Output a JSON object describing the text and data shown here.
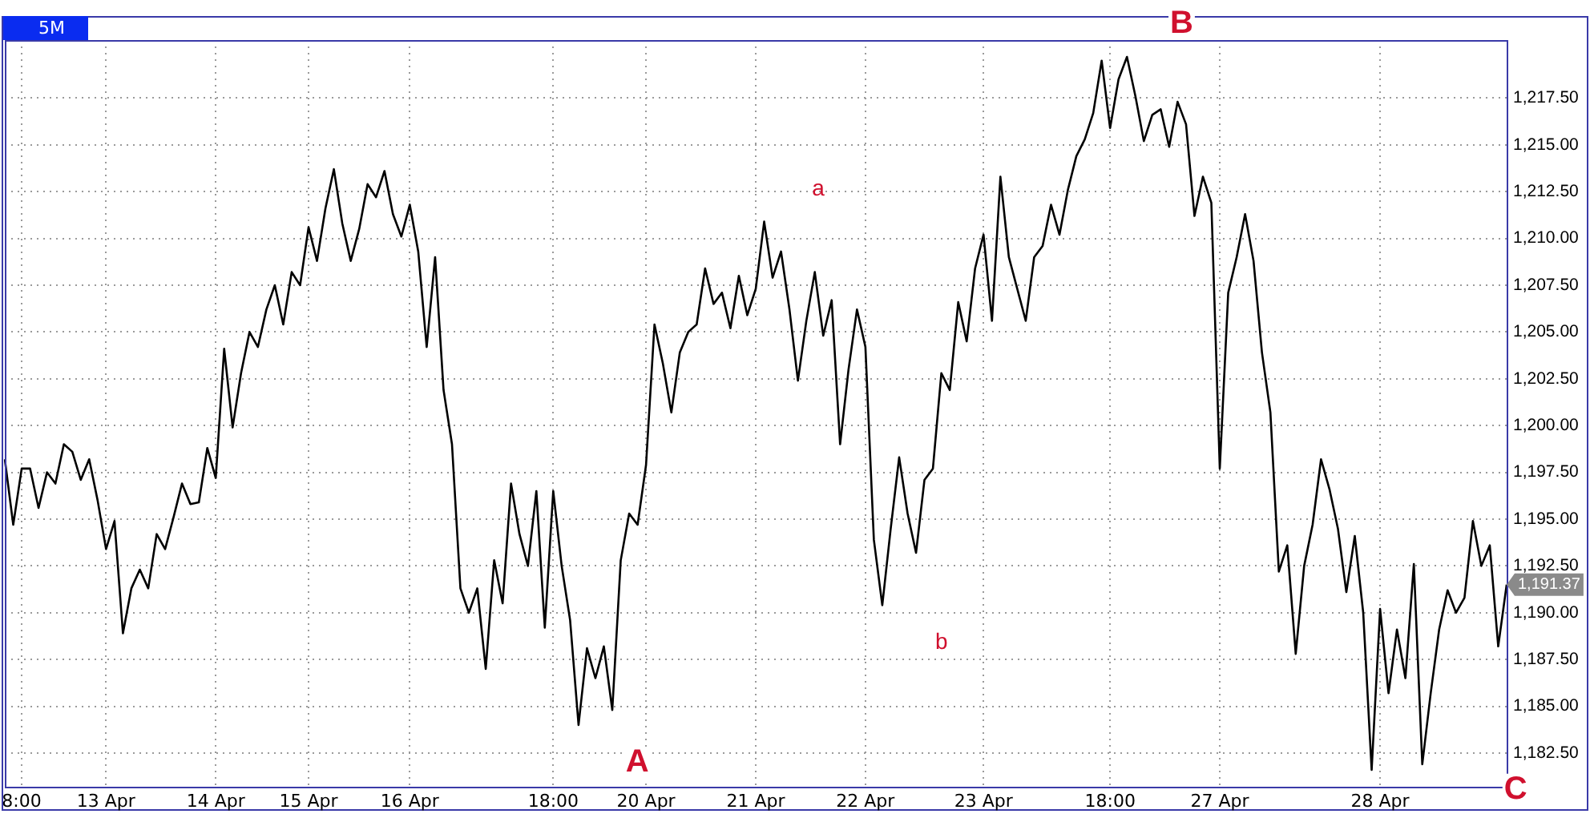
{
  "chart_data": {
    "type": "line",
    "title": "5M",
    "grid": true,
    "legend": false,
    "marker": "none",
    "line_style": "solid",
    "ylim": [
      1180.7,
      1220.6
    ],
    "categories": [
      null,
      null,
      "8:00",
      null,
      null,
      null,
      null,
      null,
      null,
      null,
      null,
      null,
      "13 Apr",
      null,
      null,
      null,
      null,
      null,
      null,
      null,
      null,
      null,
      null,
      null,
      null,
      "14 Apr",
      null,
      null,
      null,
      null,
      null,
      null,
      null,
      null,
      null,
      null,
      "15 Apr",
      null,
      null,
      null,
      null,
      null,
      null,
      null,
      null,
      null,
      null,
      null,
      "16 Apr",
      null,
      null,
      null,
      null,
      null,
      null,
      null,
      null,
      null,
      null,
      null,
      null,
      null,
      null,
      null,
      null,
      "18:00",
      null,
      null,
      null,
      null,
      null,
      null,
      null,
      null,
      null,
      null,
      "20 Apr",
      null,
      null,
      null,
      null,
      null,
      null,
      null,
      null,
      null,
      null,
      null,
      null,
      "21 Apr",
      null,
      null,
      null,
      null,
      null,
      null,
      null,
      null,
      null,
      null,
      null,
      null,
      "22 Apr",
      null,
      null,
      null,
      null,
      null,
      null,
      null,
      null,
      null,
      null,
      null,
      null,
      null,
      "23 Apr",
      null,
      null,
      null,
      null,
      null,
      null,
      null,
      null,
      null,
      null,
      null,
      null,
      null,
      null,
      "18:00",
      null,
      null,
      null,
      null,
      null,
      null,
      null,
      null,
      null,
      null,
      null,
      null,
      "27 Apr",
      null,
      null,
      null,
      null,
      null,
      null,
      null,
      null,
      null,
      null,
      null,
      null,
      null,
      null,
      null,
      null,
      null,
      null,
      "28 Apr",
      null,
      null,
      null,
      null,
      null,
      null,
      null,
      null,
      null,
      null,
      null,
      null,
      null,
      null,
      null
    ],
    "yticks": [
      {
        "value": 1182.5,
        "label": "1,182.50"
      },
      {
        "value": 1185,
        "label": "1,185.00"
      },
      {
        "value": 1187.5,
        "label": "1,187.50"
      },
      {
        "value": 1190,
        "label": "1,190.00"
      },
      {
        "value": 1192.5,
        "label": "1,192.50"
      },
      {
        "value": 1195,
        "label": "1,195.00"
      },
      {
        "value": 1197.5,
        "label": "1,197.50"
      },
      {
        "value": 1200,
        "label": "1,200.00"
      },
      {
        "value": 1202.5,
        "label": "1,202.50"
      },
      {
        "value": 1205,
        "label": "1,205.00"
      },
      {
        "value": 1207.5,
        "label": "1,207.50"
      },
      {
        "value": 1210,
        "label": "1,210.00"
      },
      {
        "value": 1212.5,
        "label": "1,212.50"
      },
      {
        "value": 1215,
        "label": "1,215.00"
      },
      {
        "value": 1217.5,
        "label": "1,217.50"
      }
    ],
    "annotations": [
      "a",
      "b",
      "A",
      "B",
      "C",
      "1,191.37"
    ],
    "series": [
      {
        "color": "#000000",
        "values": [
          1198.2,
          1194.7,
          1197.7,
          1197.7,
          1195.6,
          1197.5,
          1196.9,
          1199.0,
          1198.6,
          1197.1,
          1198.2,
          1196.0,
          1193.4,
          1194.9,
          1188.9,
          1191.3,
          1192.3,
          1191.3,
          1194.2,
          1193.4,
          1195.1,
          1196.9,
          1195.8,
          1195.9,
          1198.8,
          1197.2,
          1204.1,
          1199.9,
          1202.8,
          1205.0,
          1204.2,
          1206.2,
          1207.5,
          1205.4,
          1208.2,
          1207.5,
          1210.6,
          1208.8,
          1211.6,
          1213.7,
          1210.8,
          1208.8,
          1210.5,
          1212.9,
          1212.2,
          1213.6,
          1211.3,
          1210.1,
          1211.8,
          1209.3,
          1204.2,
          1209.0,
          1201.9,
          1199.0,
          1191.3,
          1190.0,
          1191.3,
          1187.0,
          1192.8,
          1190.5,
          1196.9,
          1194.2,
          1192.5,
          1196.5,
          1189.2,
          1196.5,
          1192.5,
          1189.6,
          1184.0,
          1188.1,
          1186.5,
          1188.2,
          1184.8,
          1192.8,
          1195.3,
          1194.7,
          1197.9,
          1205.4,
          1203.3,
          1200.7,
          1203.9,
          1205.0,
          1205.4,
          1208.4,
          1206.5,
          1207.1,
          1205.2,
          1208.0,
          1205.9,
          1207.3,
          1210.9,
          1207.9,
          1209.3,
          1206.2,
          1202.4,
          1205.6,
          1208.2,
          1204.8,
          1206.7,
          1199.0,
          1203.0,
          1206.2,
          1204.2,
          1193.9,
          1190.4,
          1194.5,
          1198.3,
          1195.3,
          1193.2,
          1197.1,
          1197.7,
          1202.8,
          1201.9,
          1206.6,
          1204.5,
          1208.4,
          1210.2,
          1205.6,
          1213.3,
          1209.0,
          1207.3,
          1205.6,
          1209.0,
          1209.6,
          1211.8,
          1210.2,
          1212.6,
          1214.4,
          1215.3,
          1216.7,
          1219.5,
          1215.9,
          1218.5,
          1219.7,
          1217.6,
          1215.2,
          1216.6,
          1216.9,
          1214.9,
          1217.3,
          1216.1,
          1211.2,
          1213.3,
          1211.9,
          1197.7,
          1207.1,
          1209.0,
          1211.3,
          1208.8,
          1203.9,
          1200.7,
          1192.2,
          1193.6,
          1187.8,
          1192.5,
          1194.7,
          1198.2,
          1196.6,
          1194.5,
          1191.1,
          1194.1,
          1190.0,
          1181.6,
          1190.2,
          1185.7,
          1189.1,
          1186.5,
          1192.6,
          1181.9,
          1185.7,
          1189.1,
          1191.2,
          1190.0,
          1190.8,
          1194.9,
          1192.5,
          1193.6,
          1188.2,
          1191.5
        ]
      }
    ]
  }
}
